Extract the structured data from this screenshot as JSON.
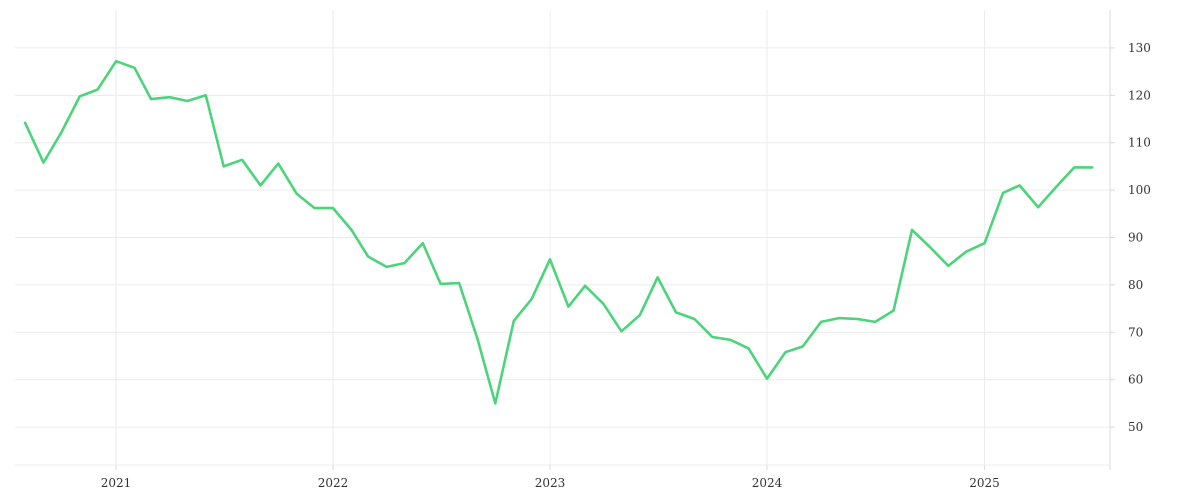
{
  "chart_data": {
    "type": "line",
    "title": "",
    "xlabel": "",
    "ylabel": "",
    "y_axis_position": "right",
    "grid": true,
    "legend": "none",
    "colors": {
      "line": "#4cd47a",
      "grid": "#ececec",
      "text": "#333333"
    },
    "xlim": [
      "2020-07-15",
      "2025-07-31"
    ],
    "ylim": [
      42,
      138
    ],
    "x_ticks": [
      {
        "date": "2021-01-01",
        "label": "2021"
      },
      {
        "date": "2022-01-01",
        "label": "2022"
      },
      {
        "date": "2023-01-01",
        "label": "2023"
      },
      {
        "date": "2024-01-01",
        "label": "2024"
      },
      {
        "date": "2025-01-01",
        "label": "2025"
      }
    ],
    "y_ticks": [
      50,
      60,
      70,
      80,
      90,
      100,
      110,
      120,
      130
    ],
    "series": [
      {
        "x": [
          "2020-08-01",
          "2020-09-01",
          "2020-10-01",
          "2020-11-01",
          "2020-12-01",
          "2021-01-01",
          "2021-02-01",
          "2021-03-01",
          "2021-04-01",
          "2021-05-01",
          "2021-06-01",
          "2021-07-01",
          "2021-08-01",
          "2021-09-01",
          "2021-10-01",
          "2021-11-01",
          "2021-12-01",
          "2022-01-01",
          "2022-02-01",
          "2022-03-01",
          "2022-04-01",
          "2022-05-01",
          "2022-06-01",
          "2022-07-01",
          "2022-08-01",
          "2022-09-01",
          "2022-10-01",
          "2022-11-01",
          "2022-12-01",
          "2023-01-01",
          "2023-02-01",
          "2023-03-01",
          "2023-04-01",
          "2023-05-01",
          "2023-06-01",
          "2023-07-01",
          "2023-08-01",
          "2023-09-01",
          "2023-10-01",
          "2023-11-01",
          "2023-12-01",
          "2024-01-01",
          "2024-02-01",
          "2024-03-01",
          "2024-04-01",
          "2024-05-01",
          "2024-06-01",
          "2024-07-01",
          "2024-08-01",
          "2024-09-01",
          "2024-10-01",
          "2024-11-01",
          "2024-12-01",
          "2025-01-01",
          "2025-02-01",
          "2025-03-01",
          "2025-04-01",
          "2025-05-01",
          "2025-06-01",
          "2025-07-01"
        ],
        "values": [
          114.2,
          105.8,
          112.2,
          119.8,
          121.2,
          127.2,
          125.8,
          119.2,
          119.6,
          118.8,
          120.0,
          105.0,
          106.4,
          101.0,
          105.6,
          99.2,
          96.2,
          96.2,
          91.6,
          86.0,
          83.8,
          84.6,
          88.8,
          80.2,
          80.4,
          68.6,
          55.0,
          72.4,
          77.0,
          85.4,
          75.4,
          79.8,
          76.0,
          70.2,
          73.6,
          81.6,
          74.2,
          72.8,
          69.0,
          68.4,
          66.6,
          60.2,
          65.8,
          67.0,
          72.2,
          73.0,
          72.8,
          72.2,
          74.6,
          91.6,
          88.0,
          84.0,
          87.0,
          88.8,
          99.4,
          101.0,
          96.4,
          100.6,
          104.8,
          104.8
        ]
      }
    ]
  }
}
